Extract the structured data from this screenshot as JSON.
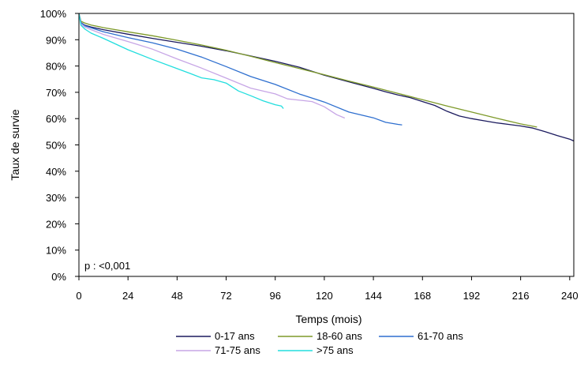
{
  "chart_data": {
    "type": "line",
    "title": "",
    "xlabel": "Temps (mois)",
    "ylabel": "Taux de survie",
    "xlim": [
      0,
      242
    ],
    "ylim": [
      0,
      100
    ],
    "x_ticks": [
      0,
      24,
      48,
      72,
      96,
      120,
      144,
      168,
      192,
      216,
      240
    ],
    "y_ticks": [
      0,
      10,
      20,
      30,
      40,
      50,
      60,
      70,
      80,
      90,
      100
    ],
    "y_tick_labels": [
      "0%",
      "10%",
      "20%",
      "30%",
      "40%",
      "50%",
      "60%",
      "70%",
      "80%",
      "90%",
      "100%"
    ],
    "grid": false,
    "annotation": "p : <0,001",
    "legend_position": "bottom",
    "series": [
      {
        "name": "0-17 ans",
        "color": "#1b1a5e",
        "x": [
          0,
          1,
          3,
          6,
          12,
          24,
          36,
          48,
          60,
          72,
          84,
          96,
          108,
          120,
          132,
          144,
          150,
          156,
          162,
          168,
          174,
          180,
          186,
          192,
          198,
          204,
          210,
          216,
          222,
          228,
          234,
          240,
          242
        ],
        "y": [
          100,
          96.5,
          95.5,
          94.8,
          93.8,
          92.1,
          90.5,
          89,
          87.5,
          85.8,
          83.8,
          81.8,
          79.5,
          76.5,
          74,
          71.5,
          70.2,
          69,
          68,
          66.5,
          65,
          62.8,
          61,
          60,
          59.2,
          58.4,
          57.8,
          57.2,
          56.4,
          55,
          53.5,
          52.2,
          51.5
        ]
      },
      {
        "name": "18-60 ans",
        "color": "#7e9a2a",
        "x": [
          0,
          1,
          3,
          6,
          12,
          24,
          36,
          48,
          60,
          72,
          84,
          96,
          108,
          120,
          132,
          144,
          156,
          168,
          180,
          192,
          204,
          216,
          224
        ],
        "y": [
          100,
          97,
          96.3,
          95.6,
          94.6,
          93,
          91.5,
          89.8,
          88,
          86,
          83.7,
          81.3,
          79,
          76.7,
          74.3,
          72,
          69.6,
          67.2,
          64.8,
          62.5,
          60.2,
          58,
          56.8
        ]
      },
      {
        "name": "61-70 ans",
        "color": "#2e6fcf",
        "x": [
          0,
          1,
          3,
          6,
          12,
          24,
          36,
          48,
          60,
          72,
          84,
          96,
          108,
          120,
          132,
          144,
          150,
          156,
          158
        ],
        "y": [
          100,
          96.5,
          95.3,
          94.5,
          93,
          90.8,
          88.8,
          86.4,
          83.4,
          79.8,
          76,
          73,
          69.3,
          66.3,
          62.5,
          60.3,
          58.6,
          57.8,
          57.6
        ]
      },
      {
        "name": "71-75 ans",
        "color": "#c7a6e6",
        "x": [
          0,
          1,
          3,
          6,
          12,
          24,
          36,
          48,
          60,
          72,
          84,
          96,
          102,
          108,
          114,
          120,
          126,
          130
        ],
        "y": [
          100,
          96,
          94.8,
          93.8,
          92,
          89.3,
          86.4,
          82.7,
          79.2,
          75.4,
          71.6,
          69.4,
          67.5,
          67,
          66.5,
          64.5,
          61.5,
          60.2
        ]
      },
      {
        "name": ">75 ans",
        "color": "#22dede",
        "x": [
          0,
          1,
          3,
          6,
          12,
          24,
          36,
          48,
          54,
          60,
          66,
          72,
          78,
          84,
          90,
          96,
          99,
          100
        ],
        "y": [
          100,
          95.5,
          94,
          92.5,
          90.5,
          86.2,
          82.5,
          79,
          77.3,
          75.5,
          74.8,
          73.5,
          70.5,
          68.7,
          66.8,
          65.3,
          64.8,
          63.8
        ]
      }
    ]
  }
}
